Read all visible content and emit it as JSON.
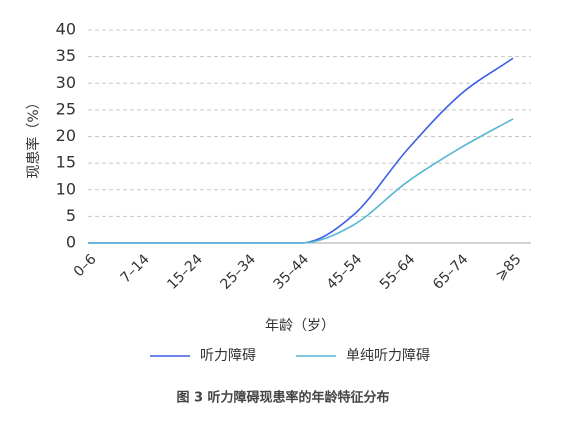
{
  "chart_data": {
    "type": "line",
    "caption": "图 3 听力障碍现患率的年龄特征分布",
    "x_label": "年龄（岁）",
    "y_label": "现患率（%）",
    "categories": [
      "0–6",
      "7–14",
      "15–24",
      "25–34",
      "35–44",
      "45–54",
      "55–64",
      "65–74",
      "⩾85"
    ],
    "series": [
      {
        "name": "听力障碍",
        "color": "#3d5ee6",
        "values": [
          0,
          0,
          0,
          0,
          0,
          5.3,
          17.4,
          27.8,
          34.7
        ]
      },
      {
        "name": "单纯听力障碍",
        "color": "#56b6d3",
        "values": [
          0,
          0,
          0,
          0,
          0,
          3.4,
          11.4,
          17.8,
          23.3
        ]
      }
    ],
    "ylim": [
      0,
      40
    ],
    "yticks": [
      0,
      5,
      10,
      15,
      20,
      25,
      30,
      35,
      40
    ],
    "grid": true
  }
}
